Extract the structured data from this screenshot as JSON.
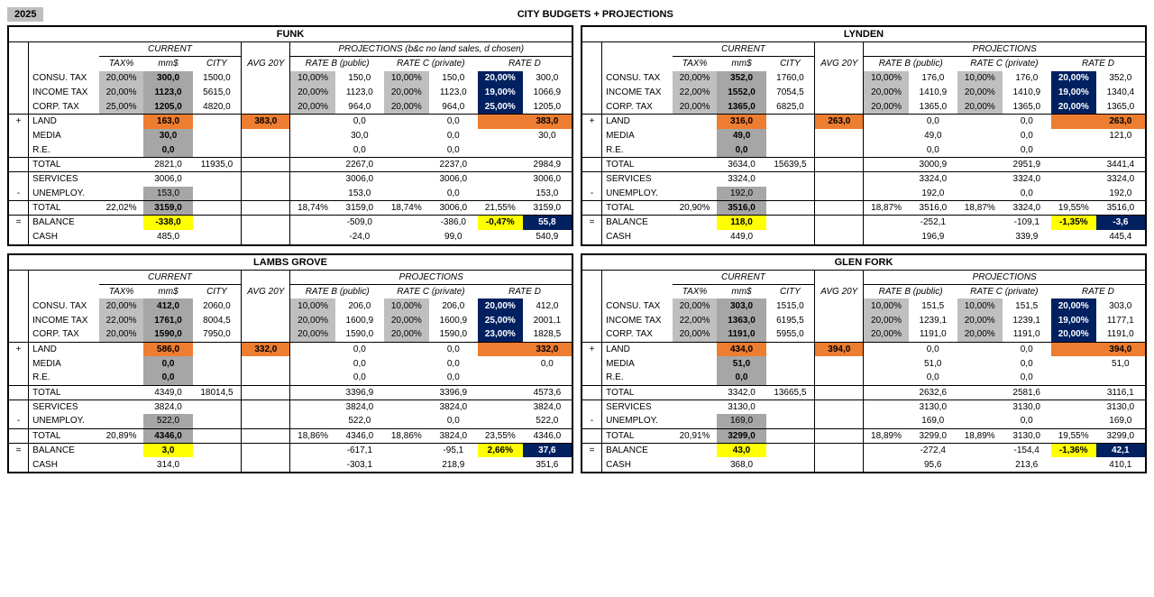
{
  "year": "2025",
  "title": "CITY BUDGETS + PROJECTIONS",
  "colors": {
    "grey": "#bfbfbf",
    "dgrey": "#a6a6a6",
    "orange": "#ed7d31",
    "yellow": "#ffff00",
    "navy": "#002060",
    "border": "#000000",
    "background": "#ffffff"
  },
  "headers": {
    "current": "CURRENT",
    "projections_funk": "PROJECTIONS (b&c no land sales, d chosen)",
    "projections": "PROJECTIONS",
    "tax": "TAX%",
    "mm": "mm$",
    "city": "CITY",
    "avg": "AVG 20Y",
    "rate_b": "RATE B (public)",
    "rate_c": "RATE C (private)",
    "rate_d": "RATE D"
  },
  "row_labels": {
    "consu": "CONSU. TAX",
    "income": "INCOME TAX",
    "corp": "CORP. TAX",
    "land": "LAND",
    "media": "MEDIA",
    "re": "R.E.",
    "total": "TOTAL",
    "services": "SERVICES",
    "unemploy": "UNEMPLOY.",
    "balance": "BALANCE",
    "cash": "CASH"
  },
  "ops": {
    "plus": "+",
    "minus": "-",
    "eq": "="
  },
  "panels": {
    "funk": {
      "name": "FUNK",
      "proj_header_key": "projections_funk",
      "consu": {
        "tax": "20,00%",
        "mm": "300,0",
        "city": "1500,0",
        "b_pct": "10,00%",
        "b_val": "150,0",
        "c_pct": "10,00%",
        "c_val": "150,0",
        "d_pct": "20,00%",
        "d_val": "300,0"
      },
      "income": {
        "tax": "20,00%",
        "mm": "1123,0",
        "city": "5615,0",
        "b_pct": "20,00%",
        "b_val": "1123,0",
        "c_pct": "20,00%",
        "c_val": "1123,0",
        "d_pct": "19,00%",
        "d_val": "1066,9"
      },
      "corp": {
        "tax": "25,00%",
        "mm": "1205,0",
        "city": "4820,0",
        "b_pct": "20,00%",
        "b_val": "964,0",
        "c_pct": "20,00%",
        "c_val": "964,0",
        "d_pct": "25,00%",
        "d_val": "1205,0"
      },
      "land": {
        "mm": "163,0",
        "avg": "383,0",
        "b_val": "0,0",
        "c_val": "0,0",
        "d_val": "383,0"
      },
      "media": {
        "mm": "30,0",
        "b_val": "30,0",
        "c_val": "0,0",
        "d_val": "30,0"
      },
      "re": {
        "mm": "0,0",
        "b_val": "0,0",
        "c_val": "0,0"
      },
      "total1": {
        "mm": "2821,0",
        "city": "11935,0",
        "b_val": "2267,0",
        "c_val": "2237,0",
        "d_val": "2984,9"
      },
      "services": {
        "mm": "3006,0",
        "b_val": "3006,0",
        "c_val": "3006,0",
        "d_val": "3006,0"
      },
      "unemploy": {
        "mm": "153,0",
        "b_val": "153,0",
        "c_val": "0,0",
        "d_val": "153,0"
      },
      "total2": {
        "tax": "22,02%",
        "mm": "3159,0",
        "b_pct": "18,74%",
        "b_val": "3159,0",
        "c_pct": "18,74%",
        "c_val": "3006,0",
        "d_pct": "21,55%",
        "d_val": "3159,0"
      },
      "balance": {
        "mm": "-338,0",
        "b_val": "-509,0",
        "c_val": "-386,0",
        "d_pct": "-0,47%",
        "d_val": "55,8"
      },
      "cash": {
        "mm": "485,0",
        "b_val": "-24,0",
        "c_val": "99,0",
        "d_val": "540,9"
      }
    },
    "lynden": {
      "name": "LYNDEN",
      "proj_header_key": "projections",
      "consu": {
        "tax": "20,00%",
        "mm": "352,0",
        "city": "1760,0",
        "b_pct": "10,00%",
        "b_val": "176,0",
        "c_pct": "10,00%",
        "c_val": "176,0",
        "d_pct": "20,00%",
        "d_val": "352,0"
      },
      "income": {
        "tax": "22,00%",
        "mm": "1552,0",
        "city": "7054,5",
        "b_pct": "20,00%",
        "b_val": "1410,9",
        "c_pct": "20,00%",
        "c_val": "1410,9",
        "d_pct": "19,00%",
        "d_val": "1340,4"
      },
      "corp": {
        "tax": "20,00%",
        "mm": "1365,0",
        "city": "6825,0",
        "b_pct": "20,00%",
        "b_val": "1365,0",
        "c_pct": "20,00%",
        "c_val": "1365,0",
        "d_pct": "20,00%",
        "d_val": "1365,0"
      },
      "land": {
        "mm": "316,0",
        "avg": "263,0",
        "b_val": "0,0",
        "c_val": "0,0",
        "d_val": "263,0"
      },
      "media": {
        "mm": "49,0",
        "b_val": "49,0",
        "c_val": "0,0",
        "d_val": "121,0"
      },
      "re": {
        "mm": "0,0",
        "b_val": "0,0",
        "c_val": "0,0"
      },
      "total1": {
        "mm": "3634,0",
        "city": "15639,5",
        "b_val": "3000,9",
        "c_val": "2951,9",
        "d_val": "3441,4"
      },
      "services": {
        "mm": "3324,0",
        "b_val": "3324,0",
        "c_val": "3324,0",
        "d_val": "3324,0"
      },
      "unemploy": {
        "mm": "192,0",
        "b_val": "192,0",
        "c_val": "0,0",
        "d_val": "192,0"
      },
      "total2": {
        "tax": "20,90%",
        "mm": "3516,0",
        "b_pct": "18,87%",
        "b_val": "3516,0",
        "c_pct": "18,87%",
        "c_val": "3324,0",
        "d_pct": "19,55%",
        "d_val": "3516,0"
      },
      "balance": {
        "mm": "118,0",
        "b_val": "-252,1",
        "c_val": "-109,1",
        "d_pct": "-1,35%",
        "d_val": "-3,6"
      },
      "cash": {
        "mm": "449,0",
        "b_val": "196,9",
        "c_val": "339,9",
        "d_val": "445,4"
      }
    },
    "lambs": {
      "name": "LAMBS GROVE",
      "proj_header_key": "projections",
      "consu": {
        "tax": "20,00%",
        "mm": "412,0",
        "city": "2060,0",
        "b_pct": "10,00%",
        "b_val": "206,0",
        "c_pct": "10,00%",
        "c_val": "206,0",
        "d_pct": "20,00%",
        "d_val": "412,0"
      },
      "income": {
        "tax": "22,00%",
        "mm": "1761,0",
        "city": "8004,5",
        "b_pct": "20,00%",
        "b_val": "1600,9",
        "c_pct": "20,00%",
        "c_val": "1600,9",
        "d_pct": "25,00%",
        "d_val": "2001,1"
      },
      "corp": {
        "tax": "20,00%",
        "mm": "1590,0",
        "city": "7950,0",
        "b_pct": "20,00%",
        "b_val": "1590,0",
        "c_pct": "20,00%",
        "c_val": "1590,0",
        "d_pct": "23,00%",
        "d_val": "1828,5"
      },
      "land": {
        "mm": "586,0",
        "avg": "332,0",
        "b_val": "0,0",
        "c_val": "0,0",
        "d_val": "332,0"
      },
      "media": {
        "mm": "0,0",
        "b_val": "0,0",
        "c_val": "0,0",
        "d_val": "0,0"
      },
      "re": {
        "mm": "0,0",
        "b_val": "0,0",
        "c_val": "0,0"
      },
      "total1": {
        "mm": "4349,0",
        "city": "18014,5",
        "b_val": "3396,9",
        "c_val": "3396,9",
        "d_val": "4573,6"
      },
      "services": {
        "mm": "3824,0",
        "b_val": "3824,0",
        "c_val": "3824,0",
        "d_val": "3824,0"
      },
      "unemploy": {
        "mm": "522,0",
        "b_val": "522,0",
        "c_val": "0,0",
        "d_val": "522,0"
      },
      "total2": {
        "tax": "20,89%",
        "mm": "4346,0",
        "b_pct": "18,86%",
        "b_val": "4346,0",
        "c_pct": "18,86%",
        "c_val": "3824,0",
        "d_pct": "23,55%",
        "d_val": "4346,0"
      },
      "balance": {
        "mm": "3,0",
        "b_val": "-617,1",
        "c_val": "-95,1",
        "d_pct": "2,66%",
        "d_val": "37,6"
      },
      "cash": {
        "mm": "314,0",
        "b_val": "-303,1",
        "c_val": "218,9",
        "d_val": "351,6"
      }
    },
    "glen": {
      "name": "GLEN FORK",
      "proj_header_key": "projections",
      "consu": {
        "tax": "20,00%",
        "mm": "303,0",
        "city": "1515,0",
        "b_pct": "10,00%",
        "b_val": "151,5",
        "c_pct": "10,00%",
        "c_val": "151,5",
        "d_pct": "20,00%",
        "d_val": "303,0"
      },
      "income": {
        "tax": "22,00%",
        "mm": "1363,0",
        "city": "6195,5",
        "b_pct": "20,00%",
        "b_val": "1239,1",
        "c_pct": "20,00%",
        "c_val": "1239,1",
        "d_pct": "19,00%",
        "d_val": "1177,1"
      },
      "corp": {
        "tax": "20,00%",
        "mm": "1191,0",
        "city": "5955,0",
        "b_pct": "20,00%",
        "b_val": "1191,0",
        "c_pct": "20,00%",
        "c_val": "1191,0",
        "d_pct": "20,00%",
        "d_val": "1191,0"
      },
      "land": {
        "mm": "434,0",
        "avg": "394,0",
        "b_val": "0,0",
        "c_val": "0,0",
        "d_val": "394,0"
      },
      "media": {
        "mm": "51,0",
        "b_val": "51,0",
        "c_val": "0,0",
        "d_val": "51,0"
      },
      "re": {
        "mm": "0,0",
        "b_val": "0,0",
        "c_val": "0,0"
      },
      "total1": {
        "mm": "3342,0",
        "city": "13665,5",
        "b_val": "2632,6",
        "c_val": "2581,6",
        "d_val": "3116,1"
      },
      "services": {
        "mm": "3130,0",
        "b_val": "3130,0",
        "c_val": "3130,0",
        "d_val": "3130,0"
      },
      "unemploy": {
        "mm": "169,0",
        "b_val": "169,0",
        "c_val": "0,0",
        "d_val": "169,0"
      },
      "total2": {
        "tax": "20,91%",
        "mm": "3299,0",
        "b_pct": "18,89%",
        "b_val": "3299,0",
        "c_pct": "18,89%",
        "c_val": "3130,0",
        "d_pct": "19,55%",
        "d_val": "3299,0"
      },
      "balance": {
        "mm": "43,0",
        "b_val": "-272,4",
        "c_val": "-154,4",
        "d_pct": "-1,36%",
        "d_val": "42,1"
      },
      "cash": {
        "mm": "368,0",
        "b_val": "95,6",
        "c_val": "213,6",
        "d_val": "410,1"
      }
    }
  }
}
